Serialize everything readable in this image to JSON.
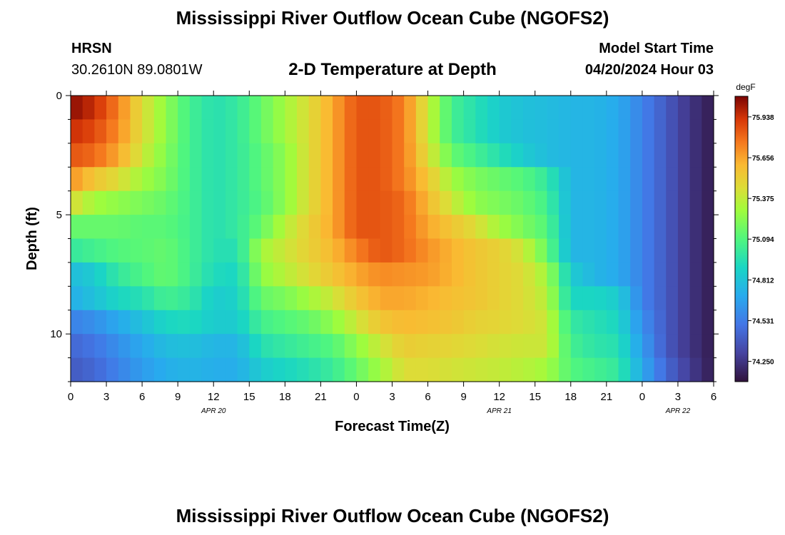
{
  "page": {
    "title_top": "Mississippi River Outflow Ocean Cube (NGOFS2)",
    "title_bottom": "Mississippi River Outflow Ocean Cube (NGOFS2)",
    "station": "HRSN",
    "coords": "30.2610N  89.0801W",
    "plot_title": "2-D Temperature at Depth",
    "model_start_label": "Model Start Time",
    "model_start_value": "04/20/2024 Hour 03"
  },
  "chart_data": {
    "type": "heatmap",
    "title": "2-D Temperature at Depth",
    "xlabel": "Forecast Time(Z)",
    "ylabel": "Depth (ft)",
    "x_range_hours": [
      0,
      54
    ],
    "y_range_ft": [
      0,
      12
    ],
    "y_reversed": true,
    "x_tick_labels": [
      "0",
      "3",
      "6",
      "9",
      "12",
      "15",
      "18",
      "21",
      "0",
      "3",
      "6",
      "9",
      "12",
      "15",
      "18",
      "21",
      "0",
      "3",
      "6"
    ],
    "x_tick_hours": [
      0,
      3,
      6,
      9,
      12,
      15,
      18,
      21,
      24,
      27,
      30,
      33,
      36,
      39,
      42,
      45,
      48,
      51,
      54
    ],
    "date_labels": [
      {
        "text": "APR 20",
        "hour": 12
      },
      {
        "text": "APR 21",
        "hour": 36
      },
      {
        "text": "APR 22",
        "hour": 51
      }
    ],
    "y_tick_labels": [
      "0",
      "5",
      "10"
    ],
    "y_tick_values": [
      0,
      5,
      10
    ],
    "colorbar": {
      "unit": "degF",
      "min": 74.11,
      "max": 76.08,
      "tick_labels": [
        "75.938",
        "75.656",
        "75.375",
        "75.094",
        "74.812",
        "74.531",
        "74.250"
      ],
      "tick_values": [
        75.938,
        75.656,
        75.375,
        75.094,
        74.812,
        74.531,
        74.25
      ]
    },
    "grid": false,
    "depth_levels_ft": [
      0.5,
      1.5,
      2.5,
      3.5,
      4.5,
      5.5,
      6.5,
      7.5,
      8.5,
      9.5,
      10.5,
      11.5
    ],
    "time_keys_hours": [
      0,
      2,
      4,
      6,
      8,
      10,
      12,
      14,
      16,
      18,
      20,
      22,
      24,
      26,
      28,
      30,
      32,
      34,
      36,
      38,
      40,
      42,
      44,
      46,
      48,
      50,
      52,
      54
    ],
    "values_degF": [
      [
        76.05,
        75.95,
        75.75,
        75.45,
        75.25,
        75.05,
        74.95,
        75.0,
        75.15,
        75.3,
        75.45,
        75.65,
        75.85,
        75.85,
        75.75,
        75.4,
        75.05,
        74.95,
        74.85,
        74.8,
        74.78,
        74.75,
        74.75,
        74.7,
        74.55,
        74.4,
        74.25,
        74.15
      ],
      [
        75.95,
        75.88,
        75.72,
        75.45,
        75.25,
        75.05,
        74.95,
        75.0,
        75.15,
        75.3,
        75.45,
        75.65,
        75.85,
        75.85,
        75.75,
        75.4,
        75.05,
        74.95,
        74.85,
        74.8,
        74.78,
        74.75,
        74.75,
        74.7,
        74.55,
        74.4,
        74.25,
        74.15
      ],
      [
        75.85,
        75.8,
        75.65,
        75.4,
        75.22,
        75.05,
        74.95,
        75.0,
        75.12,
        75.25,
        75.45,
        75.65,
        75.85,
        75.85,
        75.75,
        75.45,
        75.15,
        75.05,
        74.95,
        74.85,
        74.78,
        74.75,
        74.75,
        74.7,
        74.55,
        74.4,
        74.25,
        74.15
      ],
      [
        75.7,
        75.55,
        75.45,
        75.3,
        75.2,
        75.05,
        74.95,
        75.0,
        75.12,
        75.25,
        75.45,
        75.65,
        75.85,
        75.85,
        75.75,
        75.55,
        75.3,
        75.2,
        75.15,
        75.1,
        75.0,
        74.75,
        74.75,
        74.7,
        74.55,
        74.4,
        74.25,
        74.15
      ],
      [
        75.45,
        75.3,
        75.25,
        75.2,
        75.15,
        75.05,
        74.95,
        75.0,
        75.1,
        75.25,
        75.45,
        75.65,
        75.85,
        75.85,
        75.8,
        75.6,
        75.4,
        75.25,
        75.2,
        75.15,
        75.05,
        74.75,
        74.75,
        74.7,
        74.55,
        74.4,
        74.25,
        74.15
      ],
      [
        75.15,
        75.15,
        75.15,
        75.12,
        75.12,
        75.05,
        74.95,
        75.0,
        75.15,
        75.35,
        75.5,
        75.65,
        75.85,
        75.85,
        75.8,
        75.65,
        75.55,
        75.45,
        75.3,
        75.2,
        75.1,
        74.75,
        74.75,
        74.7,
        74.55,
        74.4,
        74.25,
        74.15
      ],
      [
        75.0,
        75.05,
        75.1,
        75.12,
        75.15,
        75.05,
        74.95,
        74.95,
        75.3,
        75.4,
        75.5,
        75.6,
        75.75,
        75.85,
        75.8,
        75.7,
        75.62,
        75.55,
        75.5,
        75.4,
        75.15,
        74.75,
        74.75,
        74.7,
        74.55,
        74.4,
        74.25,
        74.15
      ],
      [
        74.78,
        74.85,
        75.0,
        75.08,
        75.15,
        75.05,
        74.92,
        74.9,
        75.25,
        75.35,
        75.45,
        75.55,
        75.65,
        75.72,
        75.7,
        75.68,
        75.62,
        75.55,
        75.5,
        75.45,
        75.3,
        74.85,
        74.75,
        74.7,
        74.55,
        74.4,
        74.25,
        74.15
      ],
      [
        74.72,
        74.8,
        74.9,
        74.95,
        75.05,
        75.0,
        74.85,
        74.88,
        75.15,
        75.2,
        75.3,
        75.4,
        75.55,
        75.65,
        75.65,
        75.62,
        75.58,
        75.55,
        75.5,
        75.45,
        75.35,
        74.9,
        74.9,
        74.85,
        74.55,
        74.4,
        74.25,
        74.15
      ],
      [
        74.55,
        74.6,
        74.7,
        74.8,
        74.9,
        74.92,
        74.85,
        74.85,
        75.05,
        75.1,
        75.15,
        75.25,
        75.4,
        75.55,
        75.6,
        75.58,
        75.55,
        75.5,
        75.48,
        75.45,
        75.4,
        75.0,
        74.95,
        74.9,
        74.6,
        74.4,
        74.25,
        74.15
      ],
      [
        74.45,
        74.5,
        74.6,
        74.7,
        74.78,
        74.8,
        74.75,
        74.75,
        74.95,
        75.0,
        75.05,
        75.1,
        75.25,
        75.4,
        75.52,
        75.5,
        75.48,
        75.45,
        75.42,
        75.4,
        75.4,
        75.05,
        74.98,
        74.95,
        74.65,
        74.4,
        74.25,
        74.15
      ],
      [
        74.4,
        74.45,
        74.55,
        74.65,
        74.72,
        74.75,
        74.72,
        74.72,
        74.85,
        74.9,
        74.95,
        75.02,
        75.15,
        75.3,
        75.45,
        75.45,
        75.42,
        75.4,
        75.38,
        75.35,
        75.3,
        75.1,
        75.05,
        75.0,
        74.7,
        74.45,
        74.28,
        74.15
      ]
    ]
  }
}
